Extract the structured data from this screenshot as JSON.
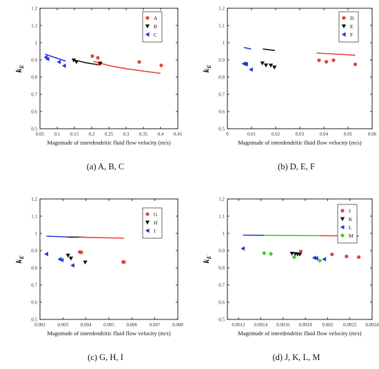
{
  "chart_data": [
    {
      "type": "scatter",
      "caption": "(a) A, B, C",
      "xlabel": "Magnitude of interdendritic fluid flow velocity (m/s)",
      "ylabel": "k",
      "ylabel_sub": "E",
      "xlim": [
        0.05,
        0.45
      ],
      "ylim": [
        0.5,
        1.2
      ],
      "x_ticks": [
        0.05,
        0.1,
        0.15,
        0.2,
        0.25,
        0.3,
        0.35,
        0.4,
        0.45
      ],
      "x_tick_labels": [
        "0.05",
        "0.1",
        "0.15",
        "0.2",
        "0.25",
        "0.3",
        "0.35",
        "0.4",
        "0.45"
      ],
      "y_ticks": [
        0.5,
        0.6,
        0.7,
        0.8,
        0.9,
        1.0,
        1.1,
        1.2
      ],
      "y_tick_labels": [
        "0.5",
        "0.6",
        "0.7",
        "0.8",
        "0.9",
        "1",
        "1.1",
        "1.2"
      ],
      "legend_position": "top-right",
      "series": [
        {
          "name": "A",
          "marker": "circle",
          "color": "#e8413c",
          "points": [
            [
              0.202,
              0.922
            ],
            [
              0.218,
              0.912
            ],
            [
              0.223,
              0.878
            ],
            [
              0.338,
              0.888
            ],
            [
              0.402,
              0.868
            ]
          ]
        },
        {
          "name": "B",
          "marker": "triangle-down",
          "color": "#111111",
          "points": [
            [
              0.148,
              0.898
            ],
            [
              0.156,
              0.888
            ],
            [
              0.225,
              0.88
            ]
          ]
        },
        {
          "name": "C",
          "marker": "triangle-left",
          "color": "#2036d8",
          "points": [
            [
              0.067,
              0.915
            ],
            [
              0.072,
              0.905
            ],
            [
              0.105,
              0.888
            ],
            [
              0.12,
              0.866
            ]
          ]
        }
      ],
      "fit_lines": [
        {
          "color": "#e8413c",
          "points": [
            [
              0.205,
              0.892
            ],
            [
              0.25,
              0.867
            ],
            [
              0.3,
              0.849
            ],
            [
              0.35,
              0.835
            ],
            [
              0.4,
              0.822
            ]
          ]
        },
        {
          "color": "#111111",
          "points": [
            [
              0.148,
              0.9
            ],
            [
              0.185,
              0.883
            ],
            [
              0.225,
              0.87
            ]
          ]
        },
        {
          "color": "#2036d8",
          "points": [
            [
              0.065,
              0.933
            ],
            [
              0.09,
              0.916
            ],
            [
              0.125,
              0.893
            ]
          ]
        }
      ]
    },
    {
      "type": "scatter",
      "caption": "(b) D, E, F",
      "xlabel": "Magnitude of interdendritic fluid flow velocity (m/s)",
      "ylabel": "k",
      "ylabel_sub": "E",
      "xlim": [
        0,
        0.06
      ],
      "ylim": [
        0.5,
        1.2
      ],
      "x_ticks": [
        0,
        0.01,
        0.02,
        0.03,
        0.04,
        0.05,
        0.06
      ],
      "x_tick_labels": [
        "0",
        "0.01",
        "0.02",
        "0.03",
        "0.04",
        "0.05",
        "0.06"
      ],
      "y_ticks": [
        0.5,
        0.6,
        0.7,
        0.8,
        0.9,
        1.0,
        1.1,
        1.2
      ],
      "y_tick_labels": [
        "0.5",
        "0.6",
        "0.7",
        "0.8",
        "0.9",
        "1",
        "1.1",
        "1.2"
      ],
      "legend_position": "top-right",
      "series": [
        {
          "name": "D",
          "marker": "circle",
          "color": "#e8413c",
          "points": [
            [
              0.038,
              0.898
            ],
            [
              0.041,
              0.889
            ],
            [
              0.044,
              0.898
            ],
            [
              0.053,
              0.874
            ]
          ]
        },
        {
          "name": "E",
          "marker": "triangle-down",
          "color": "#111111",
          "points": [
            [
              0.0145,
              0.881
            ],
            [
              0.016,
              0.869
            ],
            [
              0.018,
              0.868
            ],
            [
              0.0195,
              0.857
            ]
          ]
        },
        {
          "name": "F",
          "marker": "triangle-left",
          "color": "#2036d8",
          "points": [
            [
              0.0068,
              0.878
            ],
            [
              0.0072,
              0.876
            ],
            [
              0.0078,
              0.876
            ],
            [
              0.0098,
              0.844
            ]
          ]
        }
      ],
      "fit_lines": [
        {
          "color": "#e8413c",
          "points": [
            [
              0.037,
              0.94
            ],
            [
              0.053,
              0.927
            ]
          ]
        },
        {
          "color": "#111111",
          "points": [
            [
              0.0147,
              0.963
            ],
            [
              0.0197,
              0.955
            ]
          ]
        },
        {
          "color": "#2036d8",
          "points": [
            [
              0.0068,
              0.972
            ],
            [
              0.0098,
              0.963
            ]
          ]
        }
      ]
    },
    {
      "type": "scatter",
      "caption": "(c) G, H, I",
      "xlabel": "Magnitude of interdendritic fluid flow velocity (m/s)",
      "ylabel": "k",
      "ylabel_sub": "E",
      "xlim": [
        0.002,
        0.008
      ],
      "ylim": [
        0.5,
        1.2
      ],
      "x_ticks": [
        0.002,
        0.003,
        0.004,
        0.005,
        0.006,
        0.007,
        0.008
      ],
      "x_tick_labels": [
        "0.002",
        "0.003",
        "0.004",
        "0.005",
        "0.006",
        "0.007",
        "0.008"
      ],
      "y_ticks": [
        0.5,
        0.6,
        0.7,
        0.8,
        0.9,
        1.0,
        1.1,
        1.2
      ],
      "y_tick_labels": [
        "0.5",
        "0.6",
        "0.7",
        "0.8",
        "0.9",
        "1",
        "1.1",
        "1.2"
      ],
      "legend_position": "top-right",
      "series": [
        {
          "name": "G",
          "marker": "circle",
          "color": "#e8413c",
          "points": [
            [
              0.00373,
              0.892
            ],
            [
              0.0038,
              0.89
            ],
            [
              0.00562,
              0.834
            ],
            [
              0.00566,
              0.833
            ]
          ]
        },
        {
          "name": "H",
          "marker": "triangle-down",
          "color": "#111111",
          "points": [
            [
              0.00322,
              0.872
            ],
            [
              0.00335,
              0.855
            ],
            [
              0.00397,
              0.832
            ]
          ]
        },
        {
          "name": "I",
          "marker": "triangle-left",
          "color": "#2036d8",
          "points": [
            [
              0.00228,
              0.88
            ],
            [
              0.00286,
              0.85
            ],
            [
              0.00295,
              0.845
            ],
            [
              0.00342,
              0.814
            ]
          ]
        }
      ],
      "fit_lines": [
        {
          "color": "#2036d8",
          "points": [
            [
              0.00228,
              0.984
            ],
            [
              0.00342,
              0.978
            ]
          ]
        },
        {
          "color": "#111111",
          "points": [
            [
              0.00322,
              0.979
            ],
            [
              0.00397,
              0.978
            ]
          ]
        },
        {
          "color": "#e8413c",
          "points": [
            [
              0.0037,
              0.978
            ],
            [
              0.00566,
              0.972
            ]
          ]
        }
      ]
    },
    {
      "type": "scatter",
      "caption": "(d) J, K, L, M",
      "xlabel": "Magnitude of interdendritic fluid flow velocity (m/s)",
      "ylabel": "k",
      "ylabel_sub": "E",
      "xlim": [
        0.0011,
        0.0024
      ],
      "ylim": [
        0.5,
        1.2
      ],
      "x_ticks": [
        0.0012,
        0.0014,
        0.0016,
        0.0018,
        0.002,
        0.0022,
        0.0024
      ],
      "x_tick_labels": [
        "0.0012",
        "0.0014",
        "0.0016",
        "0.0018",
        "0.002",
        "0.0022",
        "0.0024"
      ],
      "y_ticks": [
        0.5,
        0.6,
        0.7,
        0.8,
        0.9,
        1.0,
        1.1,
        1.2
      ],
      "y_tick_labels": [
        "0.5",
        "0.6",
        "0.7",
        "0.8",
        "0.9",
        "1",
        "1.1",
        "1.2"
      ],
      "legend_position": "top-right",
      "series": [
        {
          "name": "J",
          "marker": "circle",
          "color": "#e8413c",
          "points": [
            [
              0.00176,
              0.895
            ],
            [
              0.00204,
              0.878
            ],
            [
              0.00217,
              0.866
            ],
            [
              0.00228,
              0.862
            ]
          ]
        },
        {
          "name": "K",
          "marker": "triangle-down",
          "color": "#111111",
          "points": [
            [
              0.00168,
              0.883
            ],
            [
              0.00171,
              0.881
            ],
            [
              0.00173,
              0.879
            ],
            [
              0.00175,
              0.878
            ]
          ]
        },
        {
          "name": "L",
          "marker": "triangle-left",
          "color": "#2036d8",
          "points": [
            [
              0.00124,
              0.912
            ],
            [
              0.00188,
              0.858
            ],
            [
              0.0019,
              0.855
            ],
            [
              0.00197,
              0.85
            ]
          ]
        },
        {
          "name": "M",
          "marker": "diamond",
          "color": "#2dd22d",
          "points": [
            [
              0.00143,
              0.885
            ],
            [
              0.00149,
              0.881
            ],
            [
              0.0017,
              0.862
            ],
            [
              0.00193,
              0.842
            ]
          ]
        }
      ],
      "fit_lines": [
        {
          "color": "#2036d8",
          "points": [
            [
              0.00124,
              0.99
            ],
            [
              0.00143,
              0.989
            ]
          ]
        },
        {
          "color": "#2dd22d",
          "points": [
            [
              0.00143,
              0.989
            ],
            [
              0.00193,
              0.987
            ]
          ]
        },
        {
          "color": "#e8413c",
          "points": [
            [
              0.00193,
              0.987
            ],
            [
              0.00228,
              0.985
            ]
          ]
        }
      ]
    }
  ]
}
